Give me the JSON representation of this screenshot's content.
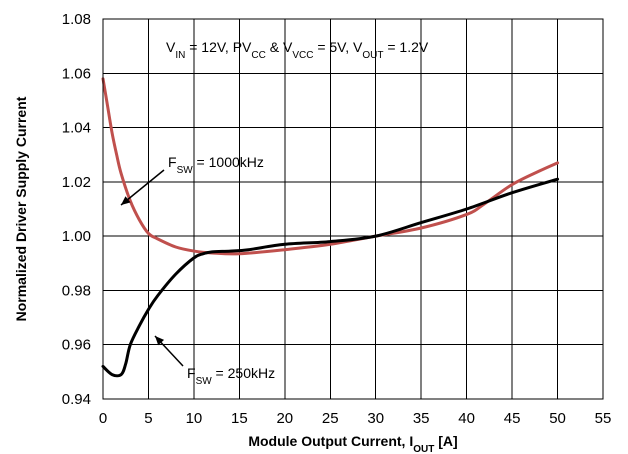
{
  "chart_data": {
    "type": "line",
    "title": "",
    "conditions": {
      "parts": [
        {
          "t": "V"
        },
        {
          "t": "IN",
          "sub": true
        },
        {
          "t": " = 12V, PV"
        },
        {
          "t": "CC",
          "sub": true
        },
        {
          "t": " & V"
        },
        {
          "t": "VCC",
          "sub": true
        },
        {
          "t": " = 5V, V"
        },
        {
          "t": "OUT",
          "sub": true
        },
        {
          "t": " = 1.2V"
        }
      ]
    },
    "xlabel": {
      "main": "Module Output Current, I",
      "sub": "OUT",
      "tail": " [A]"
    },
    "ylabel": "Normalized Driver Supply Current",
    "xlim": [
      0,
      55
    ],
    "ylim": [
      0.94,
      1.08
    ],
    "x_ticks": [
      "0",
      "5",
      "10",
      "15",
      "20",
      "25",
      "30",
      "35",
      "40",
      "45",
      "50",
      "55"
    ],
    "y_ticks": [
      "0.94",
      "0.96",
      "0.98",
      "1.00",
      "1.02",
      "1.04",
      "1.06",
      "1.08"
    ],
    "grid": true,
    "series": [
      {
        "name": "F_SW = 1000kHz",
        "label": {
          "main": "F",
          "sub": "SW",
          "tail": " = 1000kHz"
        },
        "color": "#c0504d",
        "x": [
          0,
          0.5,
          1,
          1.5,
          2,
          3,
          4,
          5,
          6,
          8,
          10,
          12,
          15,
          20,
          25,
          30,
          35,
          40,
          42,
          45,
          48,
          50
        ],
        "y": [
          1.058,
          1.048,
          1.038,
          1.03,
          1.023,
          1.013,
          1.006,
          1.001,
          0.999,
          0.996,
          0.9945,
          0.9938,
          0.9935,
          0.995,
          0.997,
          1.0,
          1.003,
          1.008,
          1.012,
          1.019,
          1.024,
          1.027
        ]
      },
      {
        "name": "F_SW = 250kHz",
        "label": {
          "main": "F",
          "sub": "SW",
          "tail": " = 250kHz"
        },
        "color": "#000000",
        "x": [
          0,
          1,
          2,
          2.5,
          3,
          4,
          5,
          6,
          8,
          10,
          11,
          12,
          14,
          16,
          20,
          25,
          30,
          35,
          40,
          45,
          50
        ],
        "y": [
          0.952,
          0.949,
          0.949,
          0.953,
          0.96,
          0.967,
          0.973,
          0.978,
          0.986,
          0.992,
          0.9935,
          0.9942,
          0.9945,
          0.995,
          0.997,
          0.998,
          1.0,
          1.005,
          1.01,
          1.016,
          1.021
        ]
      }
    ]
  }
}
